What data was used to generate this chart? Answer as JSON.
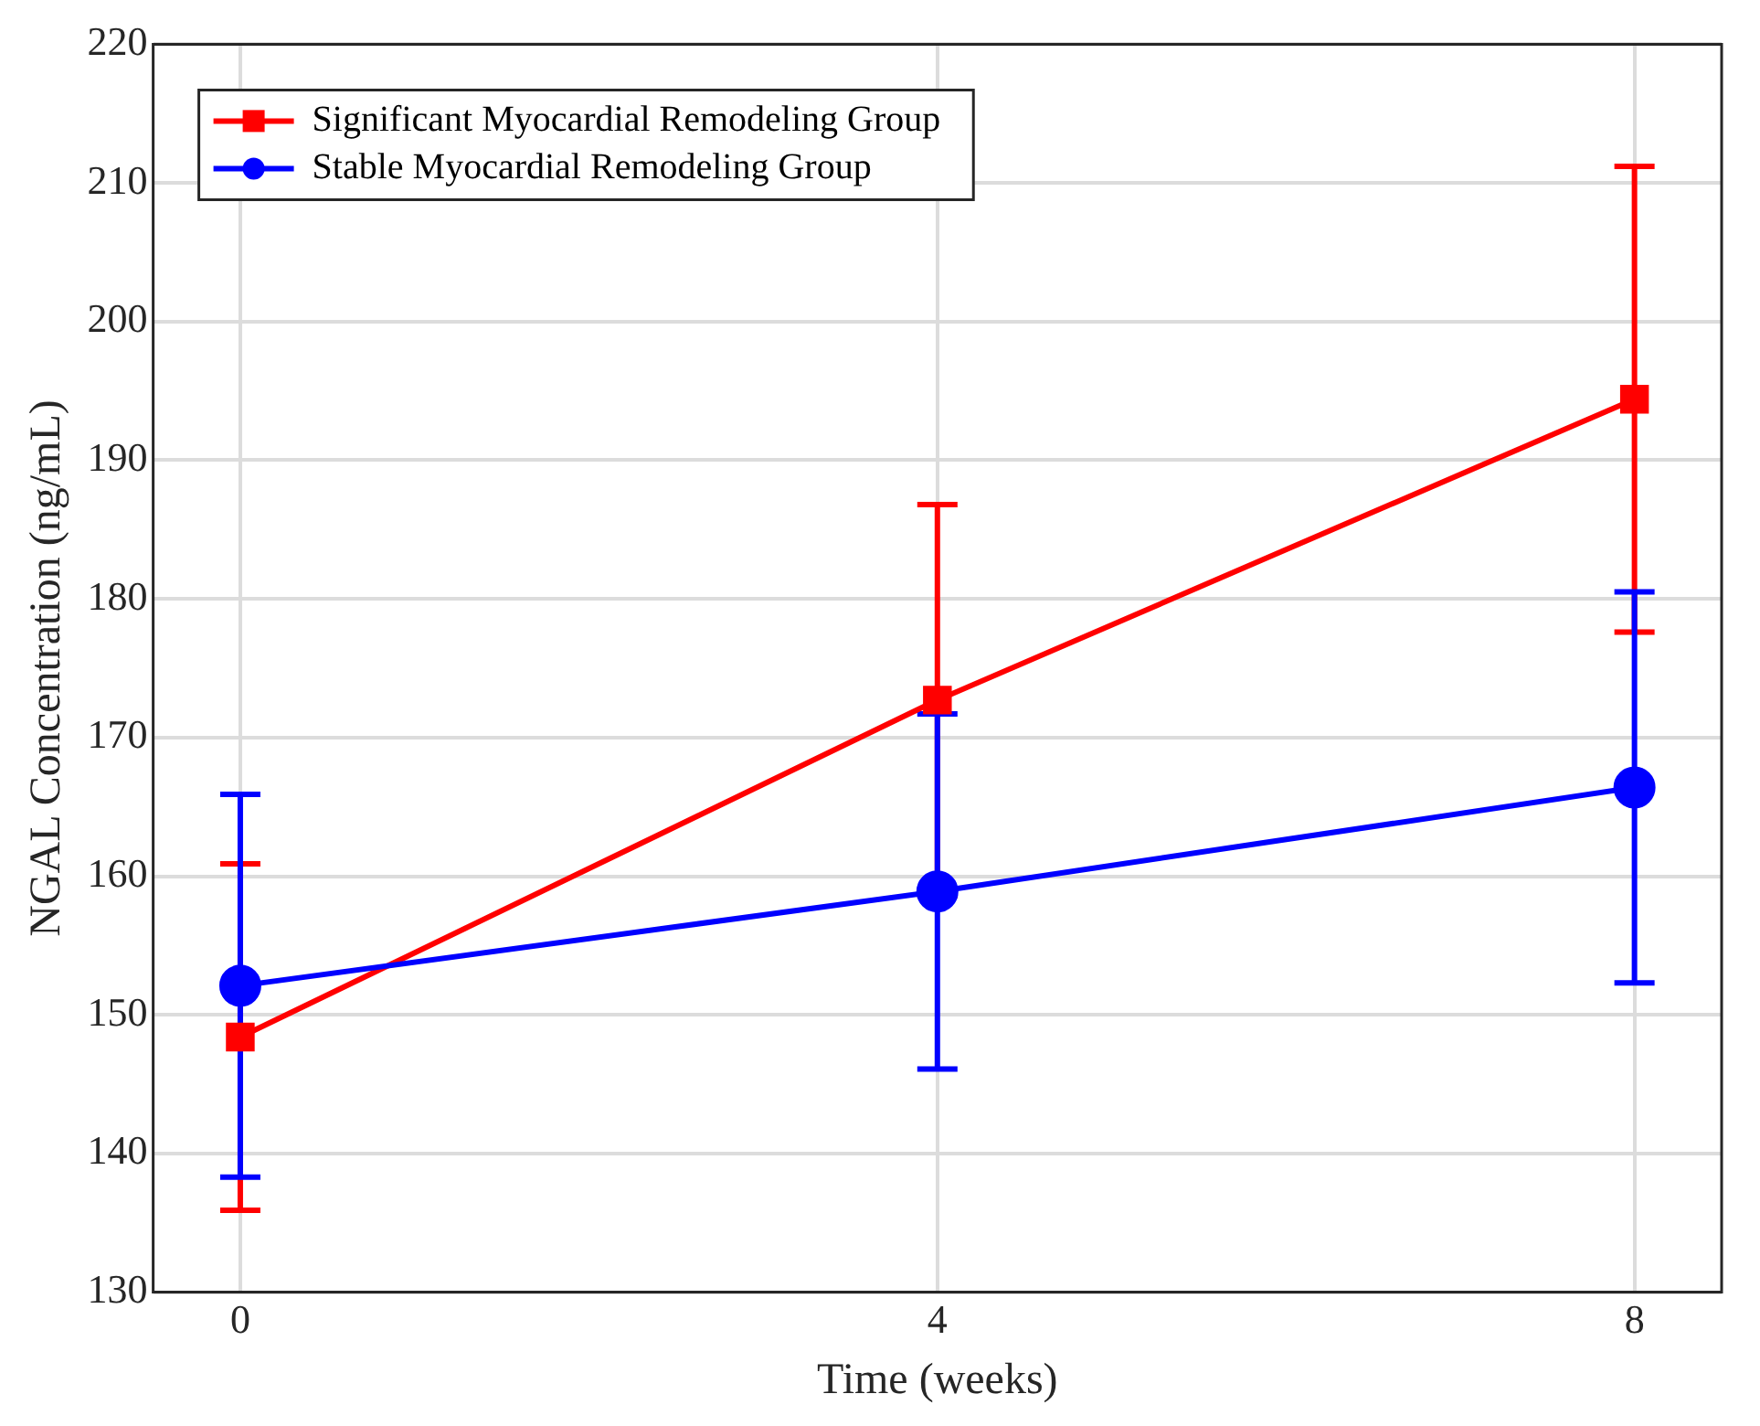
{
  "chart_data": {
    "type": "line",
    "xlabel": "Time (weeks)",
    "ylabel": "NGAL Concentration (ng/mL)",
    "x": [
      0,
      4,
      8
    ],
    "series": [
      {
        "name": "Significant Myocardial Remodeling Group",
        "color": "#ff0000",
        "marker": "square",
        "values": [
          148.4,
          172.7,
          194.4
        ],
        "errors": [
          12.5,
          14.1,
          16.8
        ]
      },
      {
        "name": "Stable Myocardial Remodeling Group",
        "color": "#0000ff",
        "marker": "circle",
        "values": [
          152.1,
          158.9,
          166.4
        ],
        "errors": [
          13.8,
          12.8,
          14.1
        ]
      }
    ],
    "xlim": [
      -0.5,
      8.5
    ],
    "xticks": [
      0,
      4,
      8
    ],
    "ylim": [
      130,
      220
    ],
    "yticks": [
      130,
      140,
      150,
      160,
      170,
      180,
      190,
      200,
      210,
      220
    ],
    "grid": true,
    "legend": "top left",
    "line_style": "solid"
  }
}
